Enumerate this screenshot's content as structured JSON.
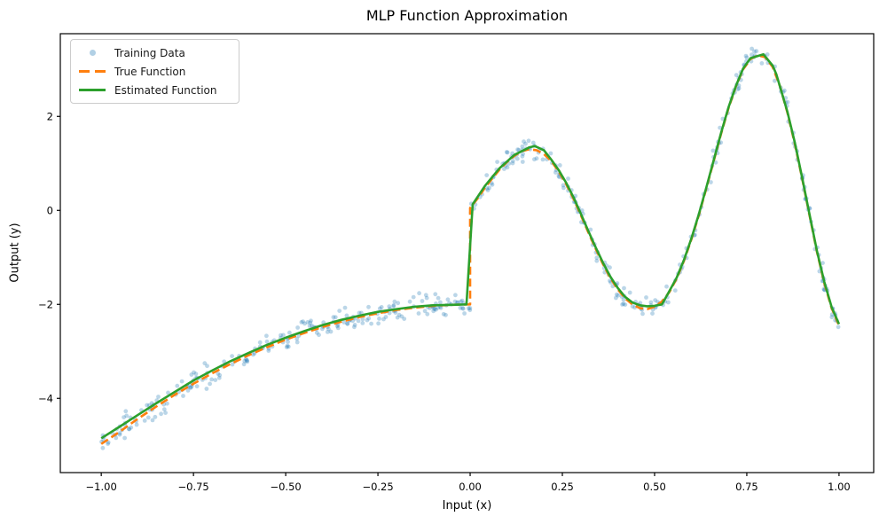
{
  "figure": {
    "title": "MLP Function Approximation",
    "xlabel": "Input (x)",
    "ylabel": "Output (y)",
    "background": "#ffffff"
  },
  "legend": {
    "position": "upper left",
    "items": [
      {
        "label": "Training Data",
        "marker": "dot",
        "color": "#1f77b4",
        "alpha": 0.35
      },
      {
        "label": "True Function",
        "marker": "dashed-line",
        "color": "#ff7f0e"
      },
      {
        "label": "Estimated Function",
        "marker": "solid-line",
        "color": "#2ca02c"
      }
    ]
  },
  "chart_data": {
    "type": "scatter+line",
    "title": "MLP Function Approximation",
    "xlabel": "Input (x)",
    "ylabel": "Output (y)",
    "xlim": [
      -1.111,
      1.094
    ],
    "ylim": [
      -5.58,
      3.76
    ],
    "grid": false,
    "legend_position": "upper left",
    "x_ticks": {
      "values": [
        -1.0,
        -0.75,
        -0.5,
        -0.25,
        0.0,
        0.25,
        0.5,
        0.75,
        1.0
      ],
      "labels": [
        "−1.00",
        "−0.75",
        "−0.50",
        "−0.25",
        "0.00",
        "0.25",
        "0.50",
        "0.75",
        "1.00"
      ]
    },
    "y_ticks": {
      "values": [
        -4,
        -2,
        0,
        2
      ],
      "labels": [
        "−4",
        "−2",
        "0",
        "2"
      ]
    },
    "series": [
      {
        "name": "Training Data",
        "type": "scatter",
        "color": "#1f77b4",
        "alpha": 0.3,
        "marker_size": 2.4,
        "n_points": 500,
        "x_range": [
          -1.0,
          1.0
        ],
        "noise_std": 0.12,
        "based_on": "True Function"
      },
      {
        "name": "True Function",
        "type": "line",
        "style": "dashed",
        "color": "#ff7f0e",
        "linewidth": 2.6,
        "points": [
          [
            -1.0,
            -4.97
          ],
          [
            -0.95,
            -4.71
          ],
          [
            -0.9,
            -4.43
          ],
          [
            -0.85,
            -4.17
          ],
          [
            -0.8,
            -3.92
          ],
          [
            -0.75,
            -3.69
          ],
          [
            -0.7,
            -3.47
          ],
          [
            -0.65,
            -3.27
          ],
          [
            -0.6,
            -3.08
          ],
          [
            -0.55,
            -2.91
          ],
          [
            -0.5,
            -2.75
          ],
          [
            -0.45,
            -2.61
          ],
          [
            -0.4,
            -2.48
          ],
          [
            -0.35,
            -2.37
          ],
          [
            -0.3,
            -2.27
          ],
          [
            -0.25,
            -2.19
          ],
          [
            -0.2,
            -2.12
          ],
          [
            -0.15,
            -2.07
          ],
          [
            -0.1,
            -2.03
          ],
          [
            -0.05,
            -2.01
          ],
          [
            0.0,
            -2.0
          ],
          [
            0.0,
            0.05
          ],
          [
            0.02,
            0.25
          ],
          [
            0.04,
            0.48
          ],
          [
            0.06,
            0.68
          ],
          [
            0.08,
            0.87
          ],
          [
            0.1,
            1.03
          ],
          [
            0.12,
            1.16
          ],
          [
            0.14,
            1.26
          ],
          [
            0.16,
            1.3
          ],
          [
            0.18,
            1.28
          ],
          [
            0.2,
            1.2
          ],
          [
            0.22,
            1.05
          ],
          [
            0.24,
            0.83
          ],
          [
            0.26,
            0.56
          ],
          [
            0.28,
            0.25
          ],
          [
            0.3,
            -0.1
          ],
          [
            0.32,
            -0.46
          ],
          [
            0.34,
            -0.81
          ],
          [
            0.36,
            -1.14
          ],
          [
            0.38,
            -1.44
          ],
          [
            0.4,
            -1.68
          ],
          [
            0.42,
            -1.87
          ],
          [
            0.44,
            -2.0
          ],
          [
            0.46,
            -2.08
          ],
          [
            0.48,
            -2.1
          ],
          [
            0.5,
            -2.05
          ],
          [
            0.52,
            -1.94
          ],
          [
            0.54,
            -1.74
          ],
          [
            0.56,
            -1.45
          ],
          [
            0.58,
            -1.07
          ],
          [
            0.6,
            -0.61
          ],
          [
            0.62,
            -0.1
          ],
          [
            0.64,
            0.46
          ],
          [
            0.66,
            1.04
          ],
          [
            0.68,
            1.62
          ],
          [
            0.7,
            2.16
          ],
          [
            0.72,
            2.63
          ],
          [
            0.74,
            3.0
          ],
          [
            0.76,
            3.22
          ],
          [
            0.78,
            3.3
          ],
          [
            0.8,
            3.26
          ],
          [
            0.82,
            3.05
          ],
          [
            0.84,
            2.64
          ],
          [
            0.86,
            2.08
          ],
          [
            0.88,
            1.42
          ],
          [
            0.9,
            0.68
          ],
          [
            0.92,
            -0.1
          ],
          [
            0.94,
            -0.88
          ],
          [
            0.96,
            -1.55
          ],
          [
            0.98,
            -2.08
          ],
          [
            1.0,
            -2.45
          ]
        ]
      },
      {
        "name": "Estimated Function",
        "type": "line",
        "style": "solid",
        "color": "#2ca02c",
        "linewidth": 2.6,
        "points": [
          [
            -1.0,
            -4.85
          ],
          [
            -0.95,
            -4.6
          ],
          [
            -0.9,
            -4.35
          ],
          [
            -0.85,
            -4.1
          ],
          [
            -0.8,
            -3.86
          ],
          [
            -0.75,
            -3.62
          ],
          [
            -0.7,
            -3.41
          ],
          [
            -0.65,
            -3.21
          ],
          [
            -0.6,
            -3.03
          ],
          [
            -0.55,
            -2.86
          ],
          [
            -0.5,
            -2.71
          ],
          [
            -0.45,
            -2.57
          ],
          [
            -0.4,
            -2.44
          ],
          [
            -0.35,
            -2.33
          ],
          [
            -0.3,
            -2.24
          ],
          [
            -0.25,
            -2.16
          ],
          [
            -0.2,
            -2.1
          ],
          [
            -0.15,
            -2.05
          ],
          [
            -0.1,
            -2.02
          ],
          [
            -0.05,
            -2.01
          ],
          [
            -0.01,
            -2.0
          ],
          [
            0.007,
            0.13
          ],
          [
            0.04,
            0.52
          ],
          [
            0.08,
            0.9
          ],
          [
            0.12,
            1.18
          ],
          [
            0.16,
            1.34
          ],
          [
            0.175,
            1.37
          ],
          [
            0.2,
            1.28
          ],
          [
            0.22,
            1.08
          ],
          [
            0.24,
            0.86
          ],
          [
            0.26,
            0.59
          ],
          [
            0.28,
            0.28
          ],
          [
            0.3,
            -0.07
          ],
          [
            0.32,
            -0.43
          ],
          [
            0.34,
            -0.78
          ],
          [
            0.36,
            -1.11
          ],
          [
            0.38,
            -1.41
          ],
          [
            0.4,
            -1.65
          ],
          [
            0.42,
            -1.84
          ],
          [
            0.44,
            -1.96
          ],
          [
            0.46,
            -2.02
          ],
          [
            0.48,
            -2.04
          ],
          [
            0.5,
            -2.03
          ],
          [
            0.52,
            -2.0
          ],
          [
            0.54,
            -1.72
          ],
          [
            0.56,
            -1.43
          ],
          [
            0.58,
            -1.05
          ],
          [
            0.6,
            -0.59
          ],
          [
            0.62,
            -0.08
          ],
          [
            0.64,
            0.48
          ],
          [
            0.66,
            1.06
          ],
          [
            0.68,
            1.64
          ],
          [
            0.7,
            2.18
          ],
          [
            0.72,
            2.64
          ],
          [
            0.74,
            3.02
          ],
          [
            0.76,
            3.24
          ],
          [
            0.795,
            3.32
          ],
          [
            0.82,
            3.08
          ],
          [
            0.83,
            2.9
          ],
          [
            0.86,
            2.1
          ],
          [
            0.88,
            1.45
          ],
          [
            0.9,
            0.7
          ],
          [
            0.92,
            -0.08
          ],
          [
            0.94,
            -0.86
          ],
          [
            0.96,
            -1.52
          ],
          [
            0.98,
            -2.06
          ],
          [
            1.0,
            -2.42
          ]
        ]
      }
    ]
  }
}
